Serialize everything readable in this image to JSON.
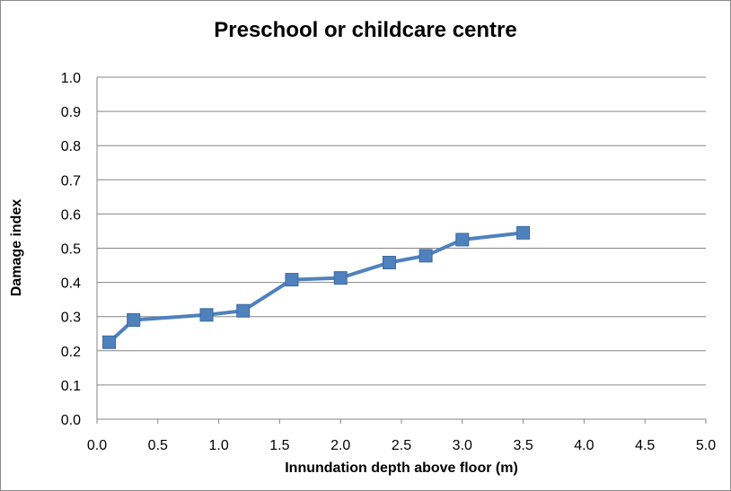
{
  "chart_data": {
    "type": "line",
    "title": "Preschool or childcare centre",
    "xlabel": "Innundation depth above floor (m)",
    "ylabel": "Damage index",
    "xlim": [
      0,
      5
    ],
    "ylim": [
      0,
      1
    ],
    "x_ticks": [
      "0.0",
      "0.5",
      "1.0",
      "1.5",
      "2.0",
      "2.5",
      "3.0",
      "3.5",
      "4.0",
      "4.5",
      "5.0"
    ],
    "y_ticks": [
      "0.0",
      "0.1",
      "0.2",
      "0.3",
      "0.4",
      "0.5",
      "0.6",
      "0.7",
      "0.8",
      "0.9",
      "1.0"
    ],
    "grid": "horizontal",
    "legend": "none",
    "series": [
      {
        "color": "#4f81bd",
        "marker": "square",
        "x": [
          0.1,
          0.3,
          0.9,
          1.2,
          1.6,
          2.0,
          2.4,
          2.7,
          3.0,
          3.5
        ],
        "y": [
          0.225,
          0.29,
          0.305,
          0.317,
          0.408,
          0.413,
          0.458,
          0.478,
          0.525,
          0.545
        ]
      }
    ]
  }
}
